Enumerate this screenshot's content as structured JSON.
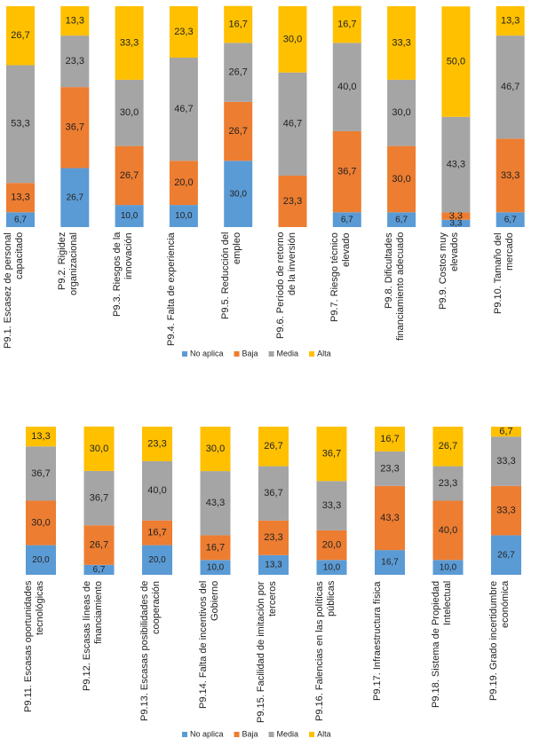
{
  "chart_data": [
    {
      "type": "stacked_bar",
      "categories": [
        "P9.1. Escasez de personal capacitado",
        "P9.2. Rigidez organizacional",
        "P9.3. Riesgos de la innovación",
        "P9.4. Falta de experiencia",
        "P9.5. Reducción del empleo",
        "P9.6. Período de retorno de la inversión",
        "P9.7. Riesgo técnico elevado",
        "P9.8. Dificultades financiamiento adecuado",
        "P9.9. Costos muy elevados",
        "P9.10. Tamaño del mercado"
      ],
      "ylim": [
        0,
        100
      ],
      "series": [
        {
          "name": "No aplica",
          "color": "#5b9bd5",
          "values": [
            6.7,
            26.7,
            10,
            10,
            30,
            null,
            6.7,
            6.7,
            3.3,
            6.7
          ],
          "value_labels": [
            "6,7",
            "26,7",
            "10,0",
            "10,0",
            "30,0",
            null,
            "6,7",
            "6,7",
            "3,3",
            "6,7"
          ]
        },
        {
          "name": "Baja",
          "color": "#ed7d31",
          "values": [
            13.3,
            36.7,
            26.7,
            20,
            26.7,
            23.3,
            36.7,
            30,
            3.3,
            33.3
          ],
          "value_labels": [
            "13,3",
            "36,7",
            "26,7",
            "20,0",
            "26,7",
            "23,3",
            "36,7",
            "30,0",
            "3,3",
            "33,3"
          ]
        },
        {
          "name": "Media",
          "color": "#a5a5a5",
          "values": [
            53.3,
            23.3,
            30,
            46.7,
            26.7,
            46.7,
            40,
            30,
            43.3,
            46.7
          ],
          "value_labels": [
            "53,3",
            "23,3",
            "30,0",
            "46,7",
            "26,7",
            "46,7",
            "40,0",
            "30,0",
            "43,3",
            "46,7"
          ]
        },
        {
          "name": "Alta",
          "color": "#ffc000",
          "values": [
            26.7,
            13.3,
            33.3,
            23.3,
            16.7,
            30,
            16.7,
            33.3,
            50,
            13.3
          ],
          "value_labels": [
            "26,7",
            "13,3",
            "33,3",
            "23,3",
            "16,7",
            "30,0",
            "16,7",
            "33,3",
            "50,0",
            "13,3"
          ]
        }
      ]
    },
    {
      "type": "stacked_bar",
      "categories": [
        "P9.11. Escasas oportunidades tecnológicas",
        "P9.12. Escasas líneas de financiamiento",
        "P9.13. Escasas posibilidades de cooperación",
        "P9.14. Falta de incentivos del Gobierno",
        "P9.15. Facilidad de imitación por terceros",
        "P9.16. Falencias en las políticas públicas",
        "P9.17. Infraestructura física",
        "P9.18. Sistema de Propiedad Intelectual",
        "P9.19. Grado incertidumbre económica"
      ],
      "ylim": [
        0,
        100
      ],
      "series": [
        {
          "name": "No aplica",
          "color": "#5b9bd5",
          "values": [
            20,
            6.7,
            20,
            10,
            13.3,
            10,
            16.7,
            10,
            26.7
          ],
          "value_labels": [
            "20,0",
            "6,7",
            "20,0",
            "10,0",
            "13,3",
            "10,0",
            "16,7",
            "10,0",
            "26,7"
          ]
        },
        {
          "name": "Baja",
          "color": "#ed7d31",
          "values": [
            30,
            26.7,
            16.7,
            16.7,
            23.3,
            20,
            43.3,
            40,
            33.3
          ],
          "value_labels": [
            "30,0",
            "26,7",
            "16,7",
            "16,7",
            "23,3",
            "20,0",
            "43,3",
            "40,0",
            "33,3"
          ]
        },
        {
          "name": "Media",
          "color": "#a5a5a5",
          "values": [
            36.7,
            36.7,
            40,
            43.3,
            36.7,
            33.3,
            23.3,
            23.3,
            33.3
          ],
          "value_labels": [
            "36,7",
            "36,7",
            "40,0",
            "43,3",
            "36,7",
            "33,3",
            "23,3",
            "23,3",
            "33,3"
          ]
        },
        {
          "name": "Alta",
          "color": "#ffc000",
          "values": [
            13.3,
            30,
            23.3,
            30,
            26.7,
            36.7,
            16.7,
            26.7,
            6.7
          ],
          "value_labels": [
            "13,3",
            "30,0",
            "23,3",
            "30,0",
            "26,7",
            "36,7",
            "16,7",
            "26,7",
            "6,7"
          ]
        }
      ]
    }
  ]
}
